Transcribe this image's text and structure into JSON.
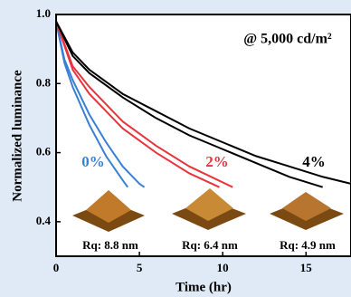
{
  "chart_data": {
    "type": "line",
    "annotation": "@ 5,000 cd/m²",
    "x_label": "Time (hr)",
    "y_label": "Normalized luminance",
    "xlim": [
      0,
      17.7
    ],
    "ylim": [
      0.3,
      1.0
    ],
    "xticks": [
      0,
      5,
      10,
      15
    ],
    "yticks": [
      0.4,
      0.6,
      0.8,
      {
        "value": 1.0,
        "label": "1.0"
      }
    ],
    "groups": [
      {
        "label": "0%",
        "color": "#3a7fd5",
        "rq_label": "Rq: 8.8 nm",
        "curves": [
          {
            "x": [
              0,
              0.5,
              1,
              2,
              3,
              4,
              4.3
            ],
            "values": [
              0.98,
              0.86,
              0.79,
              0.68,
              0.59,
              0.52,
              0.5
            ]
          },
          {
            "x": [
              0,
              0.5,
              1,
              2,
              3,
              4,
              5,
              5.3
            ],
            "values": [
              0.98,
              0.87,
              0.81,
              0.71,
              0.63,
              0.56,
              0.51,
              0.5
            ]
          }
        ]
      },
      {
        "label": "2%",
        "color": "#e8343c",
        "rq_label": "Rq: 6.4 nm",
        "curves": [
          {
            "x": [
              0,
              1,
              2,
              4,
              6,
              8,
              9.8
            ],
            "values": [
              0.98,
              0.84,
              0.77,
              0.67,
              0.6,
              0.54,
              0.5
            ]
          },
          {
            "x": [
              0,
              1,
              2,
              4,
              6,
              8,
              10.6
            ],
            "values": [
              0.98,
              0.85,
              0.79,
              0.69,
              0.62,
              0.56,
              0.5
            ]
          }
        ]
      },
      {
        "label": "4%",
        "color": "#000000",
        "rq_label": "Rq: 4.9 nm",
        "curves": [
          {
            "x": [
              0,
              1,
              2,
              4,
              6,
              8,
              10,
              12,
              14,
              16
            ],
            "values": [
              0.98,
              0.88,
              0.83,
              0.76,
              0.7,
              0.65,
              0.61,
              0.57,
              0.53,
              0.5
            ]
          },
          {
            "x": [
              0,
              1,
              2,
              4,
              6,
              8,
              10,
              12,
              14,
              16,
              17.7
            ],
            "values": [
              0.98,
              0.89,
              0.84,
              0.77,
              0.72,
              0.67,
              0.63,
              0.59,
              0.56,
              0.53,
              0.51
            ]
          }
        ]
      }
    ]
  }
}
